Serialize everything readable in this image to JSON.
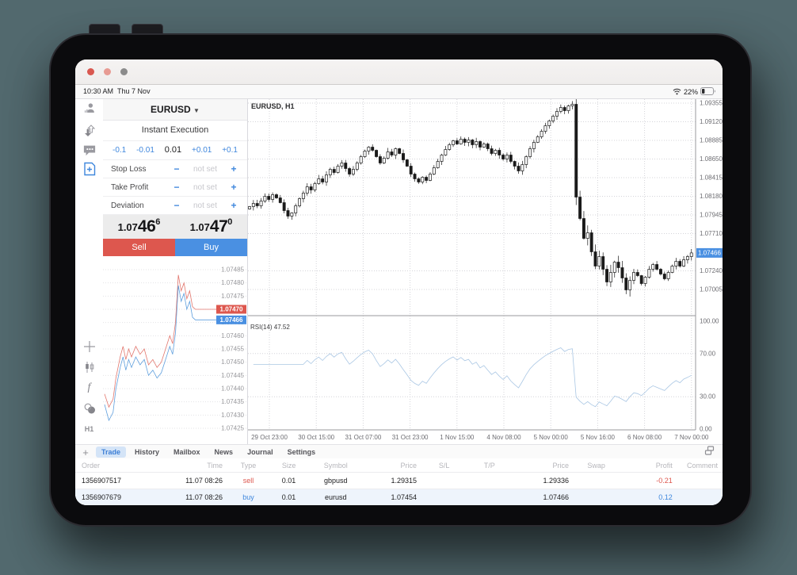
{
  "scene": {
    "background_color": "#52696e",
    "device": "iPad landscape"
  },
  "window": {
    "traffic_light_colors": [
      "#d95850",
      "#e79b93",
      "#8b8b8b"
    ]
  },
  "status_bar": {
    "time": "10:30 AM",
    "date": "Thu 7 Nov",
    "battery": "22%",
    "icons": [
      "wifi-icon",
      "battery-icon"
    ]
  },
  "sidebar": {
    "icons": [
      "trader-icon",
      "order-arrows-icon",
      "chat-icon",
      "new-order-icon",
      "crosshair-icon",
      "chart-type-icon",
      "indicators-icon",
      "objects-icon"
    ],
    "timeframe": "H1",
    "active_icon": "new-order-icon"
  },
  "trade_panel": {
    "symbol": "EURUSD",
    "dropdown_icon": "chevron-down-icon",
    "mode": "Instant Execution",
    "volume": {
      "dec2": "-0.1",
      "dec1": "-0.01",
      "value": "0.01",
      "inc1": "+0.01",
      "inc2": "+0.1"
    },
    "fields": [
      {
        "label": "Stop Loss",
        "value": "not set"
      },
      {
        "label": "Take Profit",
        "value": "not set"
      },
      {
        "label": "Deviation",
        "value": "not set"
      }
    ],
    "sell": {
      "price_main": "1.07",
      "price_big": "46",
      "price_sup": "6",
      "label": "Sell"
    },
    "buy": {
      "price_main": "1.07",
      "price_big": "47",
      "price_sup": "0",
      "label": "Buy"
    },
    "colors": {
      "sell": "#dd574e",
      "buy": "#4a90e2"
    }
  },
  "tabs": {
    "items": [
      "Trade",
      "History",
      "Mailbox",
      "News",
      "Journal",
      "Settings"
    ],
    "active": "Trade",
    "right_icon": "chart-layout-icon"
  },
  "orders_table": {
    "columns": [
      "Order",
      "Time",
      "Type",
      "Size",
      "Symbol",
      "Price",
      "S/L",
      "T/P",
      "Price",
      "Swap",
      "Profit",
      "Comment"
    ],
    "rows": [
      {
        "cells": [
          "1356907517",
          "11.07 08:26",
          "sell",
          "0.01",
          "gbpusd",
          "1.29315",
          "",
          "",
          "1.29336",
          "",
          "-0.21",
          ""
        ],
        "color": "#dd574e",
        "alt": false
      },
      {
        "cells": [
          "1356907679",
          "11.07 08:26",
          "buy",
          "0.01",
          "eurusd",
          "1.07454",
          "",
          "",
          "1.07466",
          "",
          "0.12",
          ""
        ],
        "color": "#3f87dd",
        "alt": true
      }
    ]
  },
  "chart_data": [
    {
      "type": "candlestick",
      "title": "EURUSD, H1",
      "symbol": "EURUSD",
      "timeframe": "H1",
      "open_first": 1.0802,
      "closes": [
        1.0805,
        1.0809,
        1.0806,
        1.0812,
        1.0818,
        1.0814,
        1.082,
        1.0816,
        1.081,
        1.08,
        1.0793,
        1.0797,
        1.0806,
        1.0815,
        1.0822,
        1.083,
        1.0826,
        1.0834,
        1.084,
        1.0836,
        1.0845,
        1.0852,
        1.0848,
        1.0856,
        1.086,
        1.0853,
        1.0846,
        1.0852,
        1.086,
        1.0868,
        1.0875,
        1.088,
        1.0876,
        1.0868,
        1.086,
        1.0866,
        1.0874,
        1.087,
        1.0878,
        1.0872,
        1.0864,
        1.0856,
        1.0846,
        1.084,
        1.0836,
        1.0842,
        1.0838,
        1.0846,
        1.0854,
        1.0862,
        1.087,
        1.0877,
        1.0883,
        1.0888,
        1.0884,
        1.089,
        1.0886,
        1.0889,
        1.0883,
        1.0887,
        1.088,
        1.0884,
        1.0878,
        1.0872,
        1.0876,
        1.087,
        1.0865,
        1.087,
        1.0862,
        1.0856,
        1.085,
        1.0858,
        1.0868,
        1.0878,
        1.0886,
        1.0893,
        1.09,
        1.0907,
        1.0913,
        1.0919,
        1.0925,
        1.093,
        1.0926,
        1.0932,
        1.0934,
        1.0817,
        1.079,
        1.0765,
        1.0772,
        1.0748,
        1.073,
        1.0742,
        1.0726,
        1.071,
        1.0722,
        1.0735,
        1.0728,
        1.0715,
        1.07,
        1.0712,
        1.0722,
        1.0718,
        1.0708,
        1.0716,
        1.0726,
        1.0732,
        1.0726,
        1.072,
        1.0714,
        1.0722,
        1.073,
        1.0736,
        1.073,
        1.0738,
        1.0742,
        1.07466
      ],
      "y_ticks": [
        "1.09355",
        "1.09120",
        "1.08885",
        "1.08650",
        "1.08415",
        "1.08180",
        "1.07945",
        "1.07710",
        "1.07240",
        "1.07005"
      ],
      "x_ticks": [
        "29 Oct 23:00",
        "30 Oct 15:00",
        "31 Oct 07:00",
        "31 Oct 23:00",
        "1 Nov 15:00",
        "4 Nov 08:00",
        "5 Nov 00:00",
        "5 Nov 16:00",
        "6 Nov 08:00",
        "7 Nov 00:00"
      ],
      "current_price": "1.07466",
      "current_price_color": "#4a90e2",
      "ylim": [
        1.0694,
        1.0941
      ],
      "grid": "dotted"
    },
    {
      "type": "line",
      "indicator": "RSI",
      "period": 14,
      "title": "RSI(14) 47.52",
      "current_value": 47.52,
      "levels": [
        "100.00",
        "70.00",
        "30.00",
        "0.00"
      ],
      "line_color": "#aac7e4",
      "derived_from": "closes of chart 0"
    },
    {
      "type": "line",
      "title": "tick chart bid/ask",
      "y_ticks": [
        "1.07485",
        "1.07480",
        "1.07475",
        "1.07470",
        "1.07465",
        "1.07460",
        "1.07455",
        "1.07450",
        "1.07445",
        "1.07440",
        "1.07435",
        "1.07430",
        "1.07425"
      ],
      "badges": [
        {
          "text": "1.07470",
          "price": 1.0747,
          "color": "#dd574e",
          "name": "ask-badge"
        },
        {
          "text": "1.07466",
          "price": 1.07466,
          "color": "#4a90e2",
          "name": "bid-badge"
        }
      ],
      "series": [
        {
          "name": "ask",
          "color": "#e2766d",
          "points": [
            [
              0,
              1.07438
            ],
            [
              0.03,
              1.07433
            ],
            [
              0.06,
              1.07436
            ],
            [
              0.08,
              1.07444
            ],
            [
              0.11,
              1.07452
            ],
            [
              0.13,
              1.07456
            ],
            [
              0.15,
              1.07451
            ],
            [
              0.17,
              1.07455
            ],
            [
              0.19,
              1.07452
            ],
            [
              0.22,
              1.07456
            ],
            [
              0.25,
              1.07453
            ],
            [
              0.28,
              1.07455
            ],
            [
              0.31,
              1.07449
            ],
            [
              0.34,
              1.07451
            ],
            [
              0.37,
              1.07448
            ],
            [
              0.4,
              1.0745
            ],
            [
              0.43,
              1.07455
            ],
            [
              0.46,
              1.0746
            ],
            [
              0.48,
              1.07457
            ],
            [
              0.5,
              1.07465
            ],
            [
              0.52,
              1.07483
            ],
            [
              0.54,
              1.07477
            ],
            [
              0.56,
              1.0748
            ],
            [
              0.58,
              1.07474
            ],
            [
              0.6,
              1.07477
            ],
            [
              0.62,
              1.07471
            ],
            [
              0.64,
              1.0747
            ],
            [
              1,
              1.0747
            ]
          ]
        },
        {
          "name": "bid",
          "color": "#5f9fdd",
          "points": [
            [
              0,
              1.07434
            ],
            [
              0.03,
              1.07428
            ],
            [
              0.06,
              1.07431
            ],
            [
              0.08,
              1.0744
            ],
            [
              0.11,
              1.07448
            ],
            [
              0.13,
              1.07452
            ],
            [
              0.15,
              1.07447
            ],
            [
              0.17,
              1.07451
            ],
            [
              0.19,
              1.07448
            ],
            [
              0.22,
              1.07452
            ],
            [
              0.25,
              1.07449
            ],
            [
              0.28,
              1.07451
            ],
            [
              0.31,
              1.07445
            ],
            [
              0.34,
              1.07447
            ],
            [
              0.37,
              1.07444
            ],
            [
              0.4,
              1.07446
            ],
            [
              0.43,
              1.07451
            ],
            [
              0.46,
              1.07456
            ],
            [
              0.48,
              1.07453
            ],
            [
              0.5,
              1.07461
            ],
            [
              0.52,
              1.07479
            ],
            [
              0.54,
              1.07473
            ],
            [
              0.56,
              1.07476
            ],
            [
              0.58,
              1.0747
            ],
            [
              0.6,
              1.07473
            ],
            [
              0.62,
              1.07467
            ],
            [
              0.64,
              1.07466
            ],
            [
              1,
              1.07466
            ]
          ]
        }
      ]
    }
  ]
}
